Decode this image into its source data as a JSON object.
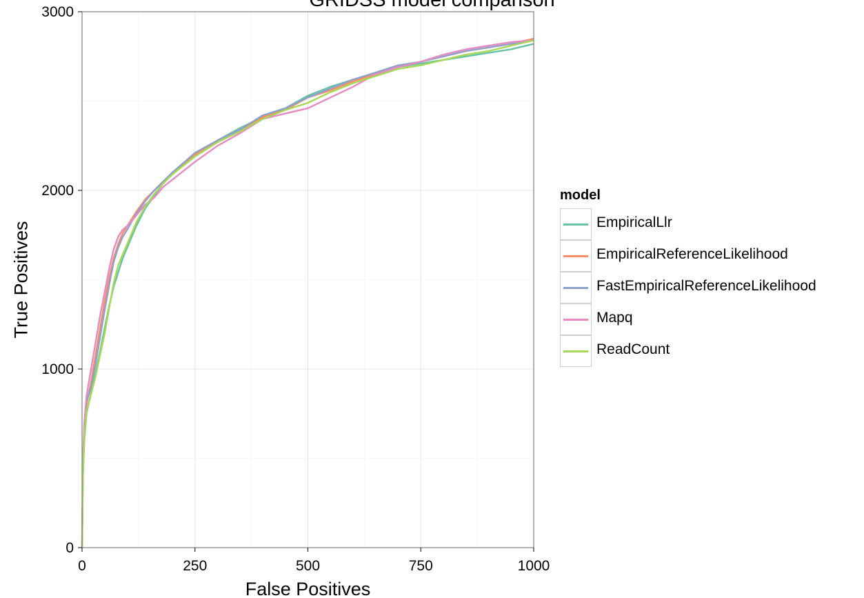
{
  "chart_data": {
    "type": "line",
    "title": "GRIDSS model comparison",
    "xlabel": "False Positives",
    "ylabel": "True Positives",
    "xlim": [
      0,
      1000
    ],
    "ylim": [
      0,
      3000
    ],
    "xticks": [
      0,
      250,
      500,
      750,
      1000
    ],
    "yticks": [
      0,
      1000,
      2000,
      3000
    ],
    "grid": true,
    "legend": {
      "title": "model",
      "position": "right"
    },
    "series": [
      {
        "name": "EmpiricalLlr",
        "color": "#66c2a5",
        "x": [
          0,
          2,
          5,
          10,
          20,
          30,
          40,
          50,
          60,
          70,
          80,
          90,
          100,
          120,
          140,
          160,
          180,
          200,
          250,
          300,
          350,
          400,
          450,
          500,
          550,
          600,
          650,
          700,
          750,
          800,
          850,
          900,
          950,
          1000
        ],
        "y": [
          0,
          400,
          600,
          750,
          870,
          980,
          1100,
          1230,
          1350,
          1460,
          1540,
          1620,
          1680,
          1800,
          1900,
          1970,
          2040,
          2090,
          2200,
          2280,
          2350,
          2410,
          2460,
          2530,
          2580,
          2620,
          2650,
          2690,
          2710,
          2730,
          2750,
          2770,
          2790,
          2820
        ]
      },
      {
        "name": "EmpiricalReferenceLikelihood",
        "color": "#fc8d62",
        "x": [
          0,
          2,
          5,
          10,
          20,
          30,
          40,
          50,
          60,
          70,
          80,
          90,
          100,
          120,
          140,
          160,
          180,
          200,
          250,
          300,
          350,
          400,
          450,
          500,
          550,
          600,
          650,
          700,
          750,
          800,
          850,
          900,
          950,
          1000
        ],
        "y": [
          0,
          450,
          650,
          800,
          930,
          1080,
          1230,
          1380,
          1510,
          1620,
          1700,
          1760,
          1800,
          1880,
          1950,
          2000,
          2050,
          2100,
          2200,
          2280,
          2340,
          2410,
          2450,
          2520,
          2560,
          2610,
          2650,
          2690,
          2720,
          2750,
          2780,
          2800,
          2820,
          2850
        ]
      },
      {
        "name": "FastEmpiricalReferenceLikelihood",
        "color": "#8da0cb",
        "x": [
          0,
          2,
          5,
          10,
          20,
          30,
          40,
          50,
          60,
          70,
          80,
          90,
          100,
          120,
          140,
          160,
          180,
          200,
          250,
          300,
          350,
          400,
          450,
          500,
          550,
          600,
          650,
          700,
          750,
          800,
          850,
          900,
          950,
          1000
        ],
        "y": [
          0,
          450,
          660,
          820,
          900,
          1030,
          1180,
          1330,
          1470,
          1600,
          1680,
          1740,
          1780,
          1870,
          1940,
          2000,
          2050,
          2100,
          2210,
          2280,
          2340,
          2420,
          2460,
          2520,
          2570,
          2620,
          2660,
          2700,
          2720,
          2750,
          2780,
          2800,
          2820,
          2840
        ]
      },
      {
        "name": "Mapq",
        "color": "#e78ac3",
        "x": [
          0,
          2,
          5,
          10,
          20,
          30,
          40,
          50,
          60,
          70,
          80,
          90,
          100,
          120,
          140,
          160,
          180,
          200,
          250,
          300,
          350,
          400,
          450,
          500,
          550,
          600,
          650,
          700,
          750,
          800,
          850,
          900,
          950,
          1000
        ],
        "y": [
          0,
          500,
          700,
          850,
          1000,
          1150,
          1300,
          1430,
          1560,
          1670,
          1740,
          1780,
          1800,
          1860,
          1920,
          1960,
          2020,
          2060,
          2160,
          2250,
          2320,
          2400,
          2430,
          2460,
          2520,
          2580,
          2650,
          2690,
          2720,
          2760,
          2790,
          2810,
          2830,
          2840
        ]
      },
      {
        "name": "ReadCount",
        "color": "#a6d854",
        "x": [
          0,
          2,
          5,
          10,
          20,
          30,
          40,
          50,
          60,
          70,
          80,
          90,
          100,
          120,
          140,
          160,
          180,
          200,
          250,
          300,
          350,
          400,
          450,
          500,
          550,
          600,
          650,
          700,
          750,
          800,
          850,
          900,
          950,
          1000
        ],
        "y": [
          0,
          420,
          620,
          760,
          860,
          960,
          1080,
          1200,
          1340,
          1480,
          1580,
          1640,
          1700,
          1820,
          1910,
          1980,
          2040,
          2090,
          2190,
          2270,
          2330,
          2400,
          2450,
          2490,
          2550,
          2600,
          2640,
          2680,
          2700,
          2730,
          2760,
          2780,
          2810,
          2840
        ]
      }
    ]
  }
}
